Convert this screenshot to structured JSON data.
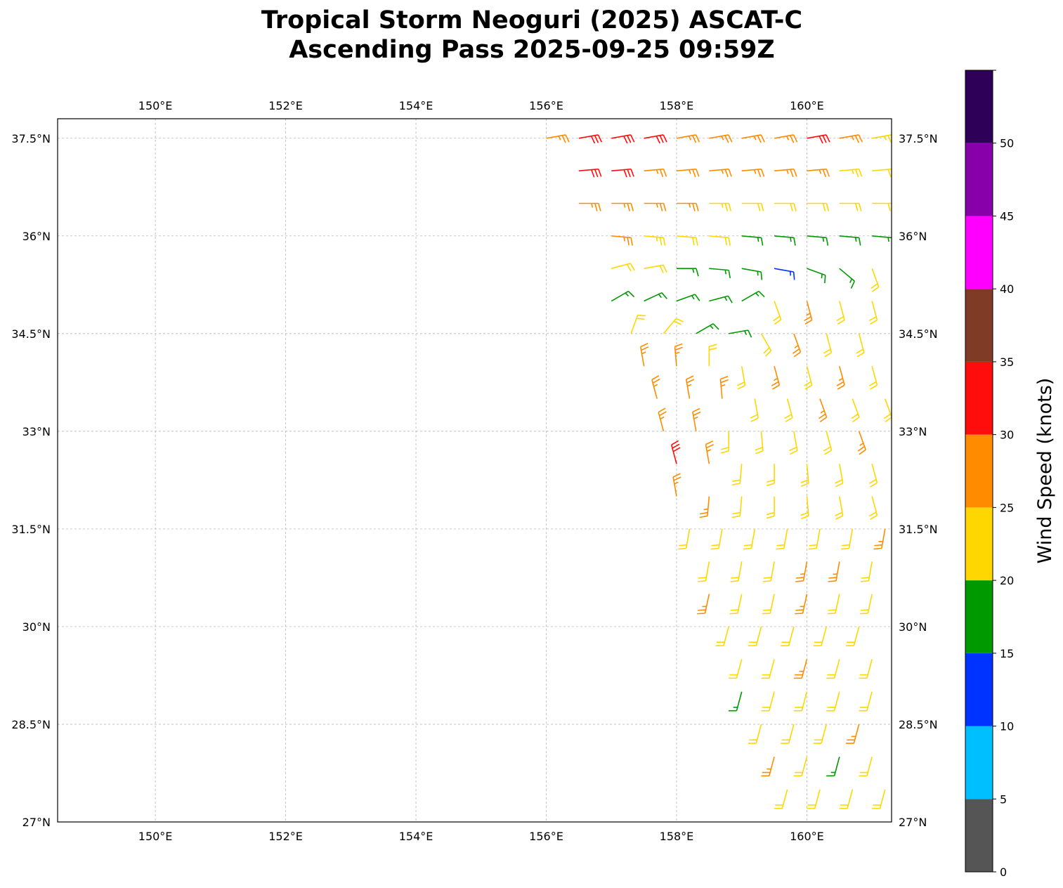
{
  "title_line1": "Tropical Storm Neoguri (2025) ASCAT-C",
  "title_line2": "Ascending Pass 2025-09-25 09:59Z",
  "colorbar": {
    "label": "Wind Speed (knots)",
    "bounds": [
      0,
      5,
      10,
      15,
      20,
      25,
      30,
      35,
      40,
      45,
      50,
      55
    ],
    "tick_labels": [
      "0",
      "5",
      "10",
      "15",
      "20",
      "25",
      "30",
      "35",
      "40",
      "45",
      "50"
    ],
    "colors": [
      "#555555",
      "#00bfff",
      "#0033ff",
      "#009900",
      "#ffd700",
      "#ff8c00",
      "#ff0d0d",
      "#7f3b26",
      "#ff00ff",
      "#8800aa",
      "#2e0057"
    ]
  },
  "chart_data": {
    "type": "wind-barb-map",
    "units": "knots",
    "xlim": [
      148.5,
      161.3
    ],
    "ylim": [
      27.0,
      37.8
    ],
    "grid": true,
    "lon_ticks": [
      150,
      152,
      154,
      156,
      158,
      160
    ],
    "lon_tick_labels": [
      "150°E",
      "152°E",
      "154°E",
      "156°E",
      "158°E",
      "160°E"
    ],
    "lat_ticks": [
      27,
      28.5,
      30,
      31.5,
      33,
      34.5,
      36,
      37.5
    ],
    "lat_tick_labels": [
      "27°N",
      "28.5°N",
      "30°N",
      "31.5°N",
      "33°N",
      "34.5°N",
      "36°N",
      "37.5°N"
    ],
    "lon_step": 0.5,
    "rows": [
      {
        "lat": 37.5,
        "lon_start": 156.0,
        "speeds": [
          27,
          31,
          31,
          31,
          27,
          27,
          27,
          27,
          31,
          27,
          24
        ],
        "dir": 80
      },
      {
        "lat": 37.0,
        "lon_start": 156.5,
        "speeds": [
          31,
          31,
          27,
          27,
          27,
          27,
          27,
          27,
          24,
          22
        ],
        "dir": 85
      },
      {
        "lat": 36.5,
        "lon_start": 156.5,
        "speeds": [
          27,
          27,
          27,
          27,
          24,
          22,
          22,
          22,
          22,
          22
        ],
        "dir": 90
      },
      {
        "lat": 36.0,
        "lon_start": 157.0,
        "speeds": [
          27,
          24,
          22,
          22,
          17,
          17,
          17,
          17,
          17
        ],
        "dir": 95
      },
      {
        "lat": 35.5,
        "lon_start": 157.0,
        "speeds": [
          22,
          22,
          17,
          17,
          17,
          13,
          17,
          17,
          22
        ],
        "dirs": [
          75,
          80,
          90,
          95,
          100,
          100,
          110,
          130,
          160
        ]
      },
      {
        "lat": 35.0,
        "lon_start": 157.0,
        "speeds": [
          17,
          17,
          17,
          17,
          17,
          22,
          27,
          22,
          22
        ],
        "dirs": [
          60,
          65,
          70,
          75,
          60,
          160,
          165,
          165,
          165
        ]
      },
      {
        "lat": 34.5,
        "lon_start": 157.3,
        "speeds": [
          22,
          22,
          17,
          17,
          22,
          27,
          22,
          22
        ],
        "dirs": [
          20,
          40,
          60,
          80,
          150,
          160,
          165,
          165
        ]
      },
      {
        "lat": 34.0,
        "lon_start": 157.5,
        "speeds": [
          27,
          27,
          22,
          22,
          27,
          22,
          27,
          22
        ],
        "dirs": [
          350,
          355,
          0,
          170,
          165,
          165,
          165,
          165
        ]
      },
      {
        "lat": 33.5,
        "lon_start": 157.7,
        "speeds": [
          27,
          27,
          27,
          22,
          22,
          27,
          22,
          22
        ],
        "dirs": [
          345,
          350,
          355,
          170,
          165,
          160,
          160,
          160
        ]
      },
      {
        "lat": 33.0,
        "lon_start": 157.8,
        "speeds": [
          27,
          27,
          22,
          22,
          22,
          22,
          27
        ],
        "dirs": [
          345,
          350,
          180,
          175,
          170,
          165,
          160
        ]
      },
      {
        "lat": 32.5,
        "lon_start": 158.0,
        "speeds": [
          31,
          27,
          22,
          22,
          22,
          22,
          22
        ],
        "dirs": [
          345,
          350,
          185,
          180,
          175,
          170,
          165
        ]
      },
      {
        "lat": 32.0,
        "lon_start": 158.0,
        "speeds": [
          27,
          27,
          22,
          22,
          22,
          22,
          22
        ],
        "dirs": [
          350,
          185,
          185,
          180,
          175,
          170,
          165
        ]
      },
      {
        "lat": 31.5,
        "lon_start": 158.2,
        "speeds": [
          22,
          22,
          22,
          22,
          22,
          22,
          27
        ],
        "dir": 190
      },
      {
        "lat": 31.0,
        "lon_start": 158.5,
        "speeds": [
          22,
          22,
          22,
          27,
          27,
          22
        ],
        "dir": 190
      },
      {
        "lat": 30.5,
        "lon_start": 158.5,
        "speeds": [
          27,
          22,
          22,
          27,
          22,
          22
        ],
        "dir": 192
      },
      {
        "lat": 30.0,
        "lon_start": 158.8,
        "speeds": [
          22,
          22,
          22,
          22,
          22
        ],
        "dir": 195
      },
      {
        "lat": 29.5,
        "lon_start": 159.0,
        "speeds": [
          22,
          22,
          27,
          22,
          22
        ],
        "dir": 195
      },
      {
        "lat": 29.0,
        "lon_start": 159.0,
        "speeds": [
          17,
          22,
          22,
          22,
          22
        ],
        "dir": 195
      },
      {
        "lat": 28.5,
        "lon_start": 159.3,
        "speeds": [
          22,
          22,
          22,
          27
        ],
        "dir": 195
      },
      {
        "lat": 28.0,
        "lon_start": 159.5,
        "speeds": [
          27,
          22,
          17,
          22
        ],
        "dir": 195
      },
      {
        "lat": 27.5,
        "lon_start": 159.7,
        "speeds": [
          22,
          22,
          22,
          22
        ],
        "dir": 195
      },
      {
        "lat": 27.0,
        "lon_start": 160.0,
        "speeds": [
          22,
          17,
          17
        ],
        "dir": 195
      }
    ]
  }
}
